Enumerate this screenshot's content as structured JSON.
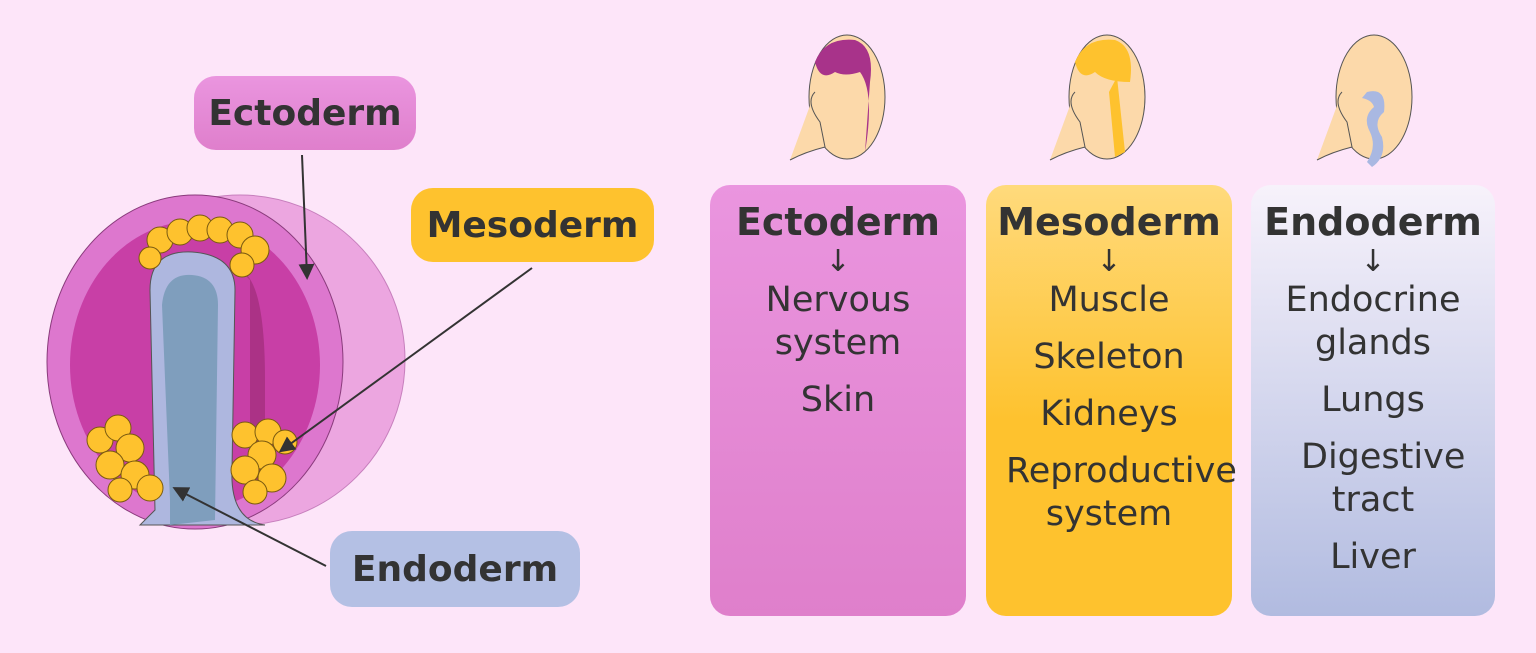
{
  "diagram_labels": {
    "ectoderm": "Ectoderm",
    "mesoderm": "Mesoderm",
    "endoderm": "Endoderm"
  },
  "columns": [
    {
      "title": "Ectoderm",
      "arrow": "↓",
      "items": [
        "Nervous system",
        "Skin"
      ],
      "color": "#e385d3",
      "highlight": "#a8338a"
    },
    {
      "title": "Mesoderm",
      "arrow": "↓",
      "items": [
        "Muscle",
        "Skeleton",
        "Kidneys",
        "Reproductive system"
      ],
      "color": "#fec22e",
      "highlight": "#fec22e"
    },
    {
      "title": "Endoderm",
      "arrow": "↓",
      "items": [
        "Endocrine glands",
        "Lungs",
        "Digestive tract",
        "Liver"
      ],
      "color": "#b1bbe0",
      "highlight": "#a9b8e2"
    }
  ]
}
